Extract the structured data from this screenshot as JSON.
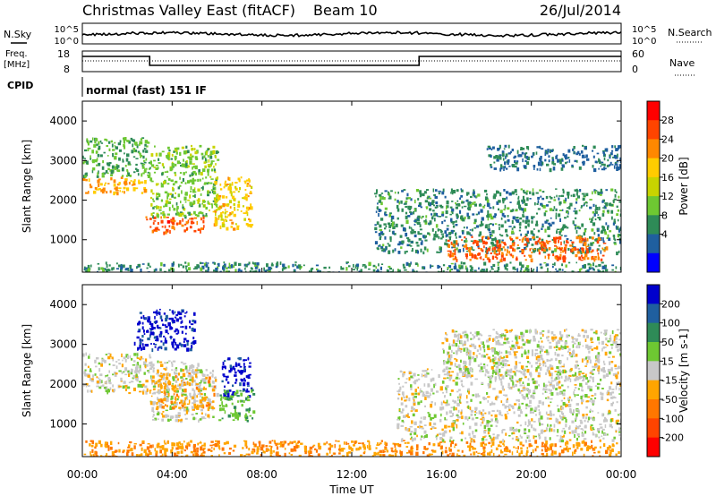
{
  "header": {
    "title": "Christmas Valley East (fitACF)",
    "beam": "Beam 10",
    "date": "26/Jul/2014"
  },
  "top_panels": {
    "nsky_label": "N.Sky",
    "nsearch_label": "N.Search",
    "count_ticks": [
      "10^5",
      "10^0"
    ],
    "freq_label_line1": "Freq.",
    "freq_label_line2": "[MHz]",
    "freq_ticks": [
      "18",
      "8"
    ],
    "nave_label": "Nave",
    "nave_ticks": [
      "60",
      "0"
    ],
    "cpid_label": "CPID",
    "cpid_text": "normal (fast) 151 IF"
  },
  "colorbars": {
    "power": {
      "label": "Power [dB]",
      "ticks": [
        "28",
        "24",
        "20",
        "16",
        "12",
        "8",
        "4"
      ],
      "colors": [
        "#ff0000",
        "#ff4400",
        "#ff8800",
        "#ffcc00",
        "#c8d400",
        "#6ec832",
        "#2e8b57",
        "#1f5f9f",
        "#0000ff"
      ]
    },
    "velocity": {
      "label": "Velocity [m s-1]",
      "ticks": [
        "200",
        "100",
        "50",
        "15",
        "-15",
        "-50",
        "-100",
        "-200"
      ],
      "colors": [
        "#0000cc",
        "#1f5f9f",
        "#2e8b57",
        "#6ec832",
        "#c8c8c8",
        "#ffa500",
        "#ff7700",
        "#ff4400",
        "#ff0000"
      ]
    }
  },
  "axes": {
    "ylabel": "Slant Range [km]",
    "yticks": [
      "4000",
      "3000",
      "2000",
      "1000"
    ],
    "xticks": [
      "00:00",
      "04:00",
      "08:00",
      "12:00",
      "16:00",
      "20:00",
      "00:00"
    ],
    "xlabel": "Time UT"
  },
  "chart_data": [
    {
      "type": "heatmap",
      "name": "Power",
      "xlabel": "Time UT",
      "ylabel": "Slant Range [km]",
      "xlim_hours": [
        0,
        24
      ],
      "ylim_km": [
        180,
        4500
      ],
      "zlabel": "Power [dB]",
      "zlim": [
        0,
        30
      ],
      "regions": [
        {
          "t": [
            0.0,
            2.8
          ],
          "r": [
            2200,
            2600
          ],
          "value": 20
        },
        {
          "t": [
            0.0,
            3.0
          ],
          "r": [
            2600,
            3600
          ],
          "value": 10
        },
        {
          "t": [
            2.8,
            5.4
          ],
          "r": [
            1200,
            1600
          ],
          "value": 24
        },
        {
          "t": [
            3.0,
            6.0
          ],
          "r": [
            1600,
            3400
          ],
          "value": 12
        },
        {
          "t": [
            5.8,
            7.5
          ],
          "r": [
            1300,
            2600
          ],
          "value": 18
        },
        {
          "t": [
            0.0,
            24.0
          ],
          "r": [
            180,
            450
          ],
          "value": 8
        },
        {
          "t": [
            13.0,
            24.0
          ],
          "r": [
            700,
            2300
          ],
          "value": 8
        },
        {
          "t": [
            16.2,
            23.4
          ],
          "r": [
            500,
            1100
          ],
          "value": 24
        },
        {
          "t": [
            18.0,
            24.0
          ],
          "r": [
            2800,
            3400
          ],
          "value": 6
        }
      ]
    },
    {
      "type": "heatmap",
      "name": "Velocity",
      "xlabel": "Time UT",
      "ylabel": "Slant Range [km]",
      "xlim_hours": [
        0,
        24
      ],
      "ylim_km": [
        180,
        4500
      ],
      "zlabel": "Velocity [m s-1]",
      "zlim": [
        -200,
        200
      ],
      "regions": [
        {
          "t": [
            0.0,
            3.0
          ],
          "r": [
            1800,
            2800
          ],
          "value": 0
        },
        {
          "t": [
            2.2,
            5.0
          ],
          "r": [
            2900,
            3900
          ],
          "value": 180
        },
        {
          "t": [
            3.0,
            5.8
          ],
          "r": [
            1100,
            2600
          ],
          "value": 0
        },
        {
          "t": [
            3.0,
            6.0
          ],
          "r": [
            1400,
            2300
          ],
          "value": -40
        },
        {
          "t": [
            6.2,
            7.5
          ],
          "r": [
            1700,
            2700
          ],
          "value": 180
        },
        {
          "t": [
            6.0,
            7.6
          ],
          "r": [
            1100,
            1900
          ],
          "value": 60
        },
        {
          "t": [
            0.0,
            24.0
          ],
          "r": [
            180,
            600
          ],
          "value": -60
        },
        {
          "t": [
            14.0,
            24.0
          ],
          "r": [
            600,
            2400
          ],
          "value": 0
        },
        {
          "t": [
            16.0,
            24.0
          ],
          "r": [
            2200,
            3400
          ],
          "value": 0
        }
      ]
    }
  ]
}
